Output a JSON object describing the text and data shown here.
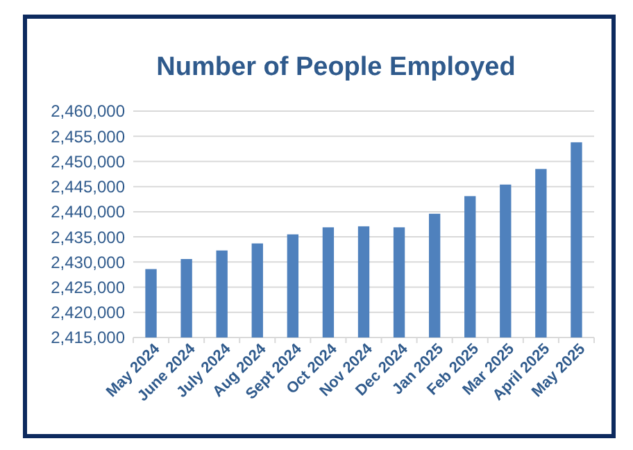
{
  "chart_data": {
    "type": "bar",
    "title": "Number of People Employed",
    "categories": [
      "May 2024",
      "June 2024",
      "July 2024",
      "Aug 2024",
      "Sept 2024",
      "Oct 2024",
      "Nov 2024",
      "Dec 2024",
      "Jan 2025",
      "Feb 2025",
      "Mar 2025",
      "April 2025",
      "May 2025"
    ],
    "values": [
      2428600,
      2430600,
      2432300,
      2433700,
      2435500,
      2436900,
      2437100,
      2436900,
      2439600,
      2443100,
      2445400,
      2448500,
      2453800
    ],
    "color": "#4f81bd",
    "ylim": [
      2415000,
      2460000
    ],
    "yticks": [
      {
        "value": 2415000,
        "label": "2,415,000"
      },
      {
        "value": 2420000,
        "label": "2,420,000"
      },
      {
        "value": 2425000,
        "label": "2,425,000"
      },
      {
        "value": 2430000,
        "label": "2,430,000"
      },
      {
        "value": 2435000,
        "label": "2,435,000"
      },
      {
        "value": 2440000,
        "label": "2,440,000"
      },
      {
        "value": 2445000,
        "label": "2,445,000"
      },
      {
        "value": 2450000,
        "label": "2,450,000"
      },
      {
        "value": 2455000,
        "label": "2,455,000"
      },
      {
        "value": 2460000,
        "label": "2,460,000"
      }
    ],
    "grid": true
  }
}
